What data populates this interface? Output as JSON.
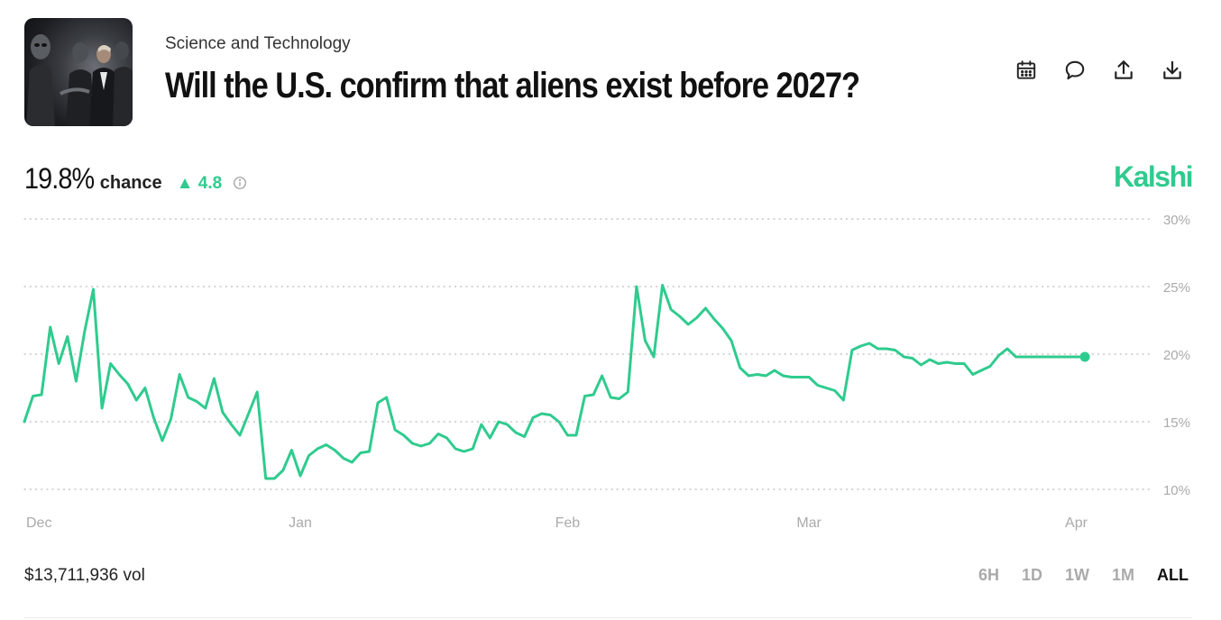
{
  "header": {
    "category": "Science and Technology",
    "title": "Will the U.S. confirm that aliens exist before 2027?"
  },
  "toolbar": {
    "icons": [
      "calendar-icon",
      "comment-icon",
      "share-icon",
      "download-icon"
    ]
  },
  "summary": {
    "chance_value": "19.8%",
    "chance_label": "chance",
    "delta": "▲ 4.8",
    "brand": "Kalshi"
  },
  "colors": {
    "accent": "#2fcb8e",
    "grid": "#bdbdbd",
    "axis_text": "#aaaaaa"
  },
  "chart_data": {
    "type": "line",
    "x_domain": [
      "2024-11-30",
      "2025-04-09"
    ],
    "x_ticks": [
      {
        "label": "Dec",
        "date": "2024-12-01"
      },
      {
        "label": "Jan",
        "date": "2025-01-01"
      },
      {
        "label": "Feb",
        "date": "2025-02-01"
      },
      {
        "label": "Mar",
        "date": "2025-03-01"
      },
      {
        "label": "Apr",
        "date": "2025-04-01"
      }
    ],
    "y_ticks": [
      "30%",
      "25%",
      "20%",
      "15%",
      "10%"
    ],
    "ylim": [
      10,
      30
    ],
    "grid": "dotted horizontal",
    "series": [
      {
        "x": [
          "2024-11-30",
          "2024-12-01",
          "2024-12-02",
          "2024-12-03",
          "2024-12-04",
          "2024-12-05",
          "2024-12-06",
          "2024-12-07",
          "2024-12-08",
          "2024-12-09",
          "2024-12-10",
          "2024-12-11",
          "2024-12-12",
          "2024-12-13",
          "2024-12-14",
          "2024-12-15",
          "2024-12-16",
          "2024-12-17",
          "2024-12-18",
          "2024-12-19",
          "2024-12-20",
          "2024-12-21",
          "2024-12-22",
          "2024-12-23",
          "2024-12-24",
          "2024-12-25",
          "2024-12-26",
          "2024-12-27",
          "2024-12-28",
          "2024-12-29",
          "2024-12-30",
          "2024-12-31",
          "2025-01-01",
          "2025-01-02",
          "2025-01-03",
          "2025-01-04",
          "2025-01-05",
          "2025-01-06",
          "2025-01-07",
          "2025-01-08",
          "2025-01-09",
          "2025-01-10",
          "2025-01-11",
          "2025-01-12",
          "2025-01-13",
          "2025-01-14",
          "2025-01-15",
          "2025-01-16",
          "2025-01-17",
          "2025-01-18",
          "2025-01-19",
          "2025-01-20",
          "2025-01-21",
          "2025-01-22",
          "2025-01-23",
          "2025-01-24",
          "2025-01-25",
          "2025-01-26",
          "2025-01-27",
          "2025-01-28",
          "2025-01-29",
          "2025-01-30",
          "2025-01-31",
          "2025-02-01",
          "2025-02-02",
          "2025-02-03",
          "2025-02-04",
          "2025-02-05",
          "2025-02-06",
          "2025-02-07",
          "2025-02-08",
          "2025-02-09",
          "2025-02-10",
          "2025-02-11",
          "2025-02-12",
          "2025-02-13",
          "2025-02-14",
          "2025-02-15",
          "2025-02-16",
          "2025-02-17",
          "2025-02-18",
          "2025-02-19",
          "2025-02-20",
          "2025-02-21",
          "2025-02-22",
          "2025-02-23",
          "2025-02-24",
          "2025-02-25",
          "2025-02-26",
          "2025-02-27",
          "2025-02-28",
          "2025-03-01",
          "2025-03-02",
          "2025-03-03",
          "2025-03-04",
          "2025-03-05",
          "2025-03-06",
          "2025-03-07",
          "2025-03-08",
          "2025-03-09",
          "2025-03-10",
          "2025-03-11",
          "2025-03-12",
          "2025-03-13",
          "2025-03-14",
          "2025-03-15",
          "2025-03-16",
          "2025-03-17",
          "2025-03-18",
          "2025-03-19",
          "2025-03-20",
          "2025-03-21",
          "2025-03-22",
          "2025-03-23",
          "2025-03-24",
          "2025-03-25",
          "2025-03-26",
          "2025-03-27",
          "2025-03-28",
          "2025-03-29",
          "2025-03-30",
          "2025-03-31",
          "2025-04-01",
          "2025-04-02"
        ],
        "y": [
          15.0,
          16.9,
          17.0,
          22.0,
          19.3,
          21.3,
          18.0,
          21.7,
          24.8,
          16.0,
          19.3,
          18.5,
          17.8,
          16.6,
          17.5,
          15.3,
          13.6,
          15.2,
          18.5,
          16.8,
          16.5,
          16.0,
          18.2,
          15.7,
          14.8,
          14.0,
          15.6,
          17.2,
          10.8,
          10.8,
          11.4,
          12.9,
          11.0,
          12.5,
          13.0,
          13.3,
          12.9,
          12.3,
          12.0,
          12.7,
          12.8,
          16.4,
          16.8,
          14.4,
          14.0,
          13.4,
          13.2,
          13.4,
          14.1,
          13.8,
          13.0,
          12.8,
          13.0,
          14.8,
          13.8,
          15.0,
          14.8,
          14.2,
          13.9,
          15.3,
          15.6,
          15.5,
          15.0,
          14.0,
          14.0,
          16.9,
          17.0,
          18.4,
          16.8,
          16.7,
          17.2,
          25.0,
          21.0,
          19.8,
          25.1,
          23.3,
          22.8,
          22.2,
          22.7,
          23.4,
          22.6,
          21.9,
          21.0,
          19.0,
          18.4,
          18.5,
          18.4,
          18.8,
          18.4,
          18.3,
          18.3,
          18.3,
          17.7,
          17.5,
          17.3,
          16.6,
          20.3,
          20.6,
          20.8,
          20.4,
          20.4,
          20.3,
          19.8,
          19.7,
          19.2,
          19.6,
          19.3,
          19.4,
          19.3,
          19.3,
          18.5,
          18.8,
          19.1,
          19.9,
          20.4,
          19.8,
          19.8,
          19.8,
          19.8,
          19.8,
          19.8,
          19.8,
          19.8,
          19.8
        ]
      }
    ],
    "last_point": {
      "x": "2025-04-02",
      "y": 19.8
    },
    "volume": "$13,711,936 vol"
  },
  "ranges": {
    "items": [
      "6H",
      "1D",
      "1W",
      "1M",
      "ALL"
    ],
    "selected": "ALL"
  }
}
